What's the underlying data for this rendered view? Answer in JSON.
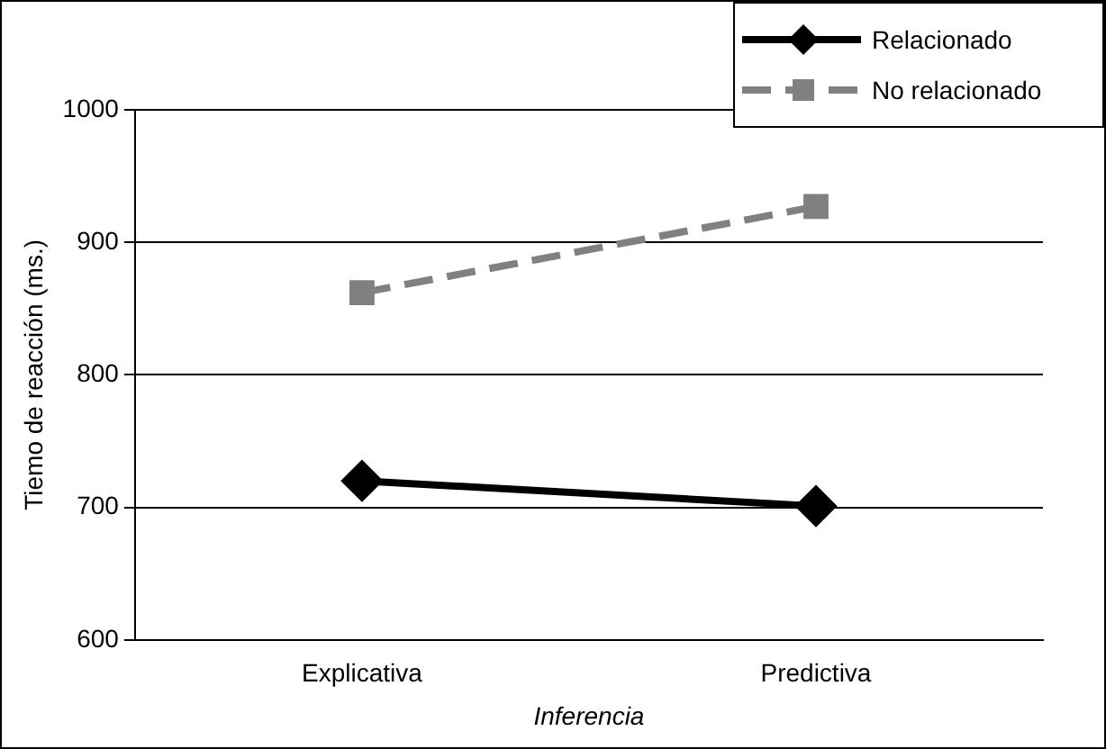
{
  "chart_data": {
    "type": "line",
    "xlabel": "Inferencia",
    "ylabel": "Tiemo de reacción (ms.)",
    "categories": [
      "Explicativa",
      "Predictiva"
    ],
    "series": [
      {
        "name": "Relacionado",
        "color": "#000000",
        "values": [
          720,
          701
        ],
        "marker": "diamond",
        "line_style": "solid"
      },
      {
        "name": "No relacionado",
        "color": "#808080",
        "values": [
          862,
          927
        ],
        "marker": "square",
        "line_style": "dashed"
      }
    ],
    "ylim": [
      600,
      1000
    ],
    "yticks": [
      600,
      700,
      800,
      900,
      1000
    ],
    "grid": "y",
    "legend": "top right"
  }
}
